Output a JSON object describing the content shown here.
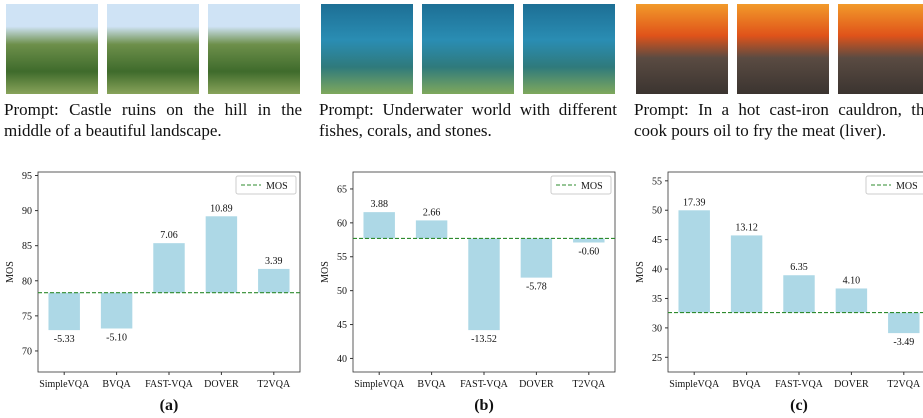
{
  "panels": [
    {
      "prompt": "Prompt: Castle ruins on the hill in the middle of a beautiful landscape.",
      "label": "(a)"
    },
    {
      "prompt": "Prompt: Underwater world with different fishes, corals, and stones.",
      "label": "(b)"
    },
    {
      "prompt": "Prompt: In a hot cast-iron cauldron, the cook pours oil to fry the meat (liver).",
      "label": "(c)"
    }
  ],
  "chart_data": [
    {
      "type": "bar",
      "ylabel": "MOS",
      "categories": [
        "SimpleVQA",
        "BVQA",
        "FAST-VQA",
        "DOVER",
        "T2VQA"
      ],
      "values": [
        -5.33,
        -5.1,
        7.06,
        10.89,
        3.39
      ],
      "value_labels": [
        "-5.33",
        "-5.10",
        "7.06",
        "10.89",
        "3.39"
      ],
      "color": "#add8e6",
      "reference": {
        "name": "MOS",
        "value": 78.3,
        "color": "#2e8b2e"
      },
      "ylim": [
        67,
        95.5
      ],
      "yticks": [
        70,
        75,
        80,
        85,
        90,
        95
      ]
    },
    {
      "type": "bar",
      "ylabel": "MOS",
      "categories": [
        "SimpleVQA",
        "BVQA",
        "FAST-VQA",
        "DOVER",
        "T2VQA"
      ],
      "values": [
        3.88,
        2.66,
        -13.52,
        -5.78,
        -0.6
      ],
      "value_labels": [
        "3.88",
        "2.66",
        "-13.52",
        "-5.78",
        "-0.60"
      ],
      "color": "#add8e6",
      "reference": {
        "name": "MOS",
        "value": 57.7,
        "color": "#2e8b2e"
      },
      "ylim": [
        38,
        67.5
      ],
      "yticks": [
        40,
        45,
        50,
        55,
        60,
        65
      ]
    },
    {
      "type": "bar",
      "ylabel": "MOS",
      "categories": [
        "SimpleVQA",
        "BVQA",
        "FAST-VQA",
        "DOVER",
        "T2VQA"
      ],
      "values": [
        17.39,
        13.12,
        6.35,
        4.1,
        -3.49
      ],
      "value_labels": [
        "17.39",
        "13.12",
        "6.35",
        "4.10",
        "-3.49"
      ],
      "color": "#add8e6",
      "reference": {
        "name": "MOS",
        "value": 32.6,
        "color": "#2e8b2e"
      },
      "ylim": [
        22.5,
        56.5
      ],
      "yticks": [
        25,
        30,
        35,
        40,
        45,
        50,
        55
      ]
    }
  ]
}
